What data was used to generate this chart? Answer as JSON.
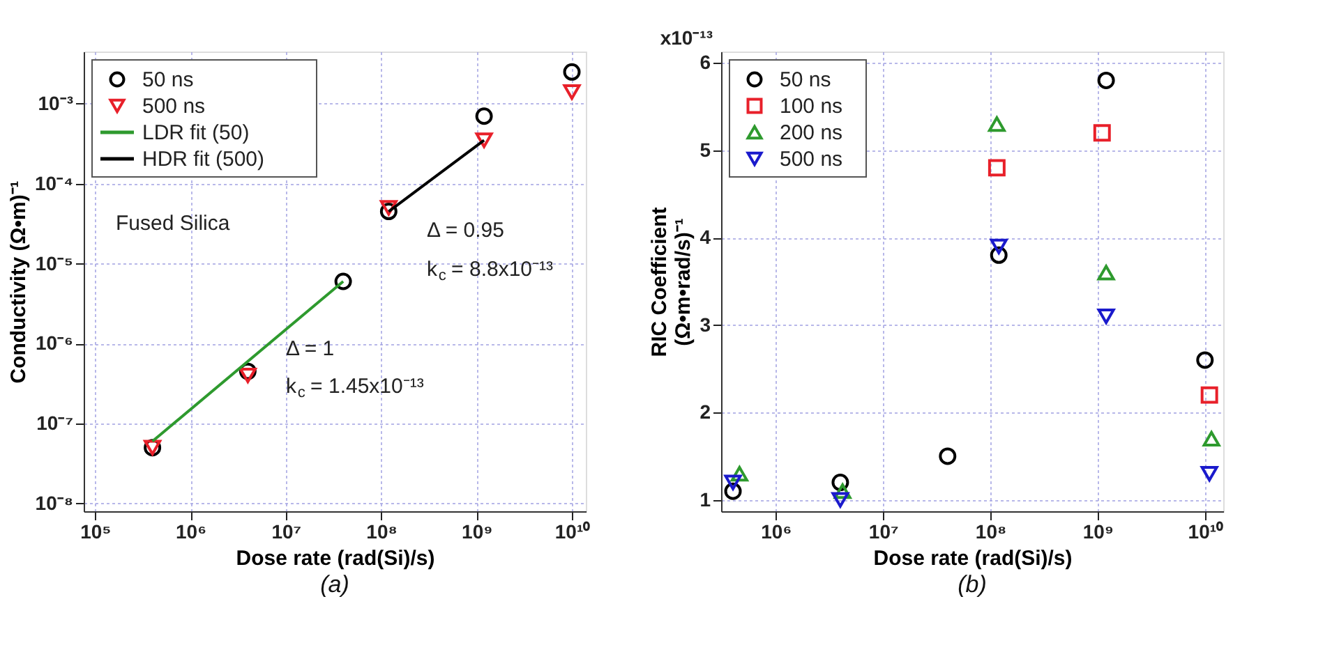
{
  "chart_data": [
    {
      "type": "scatter",
      "title": "(a)",
      "xlabel": "Dose rate (rad(Si)/s)",
      "ylabel": "Conductivity (Ω•m)⁻¹",
      "log": "xy",
      "grid": true,
      "legend": "top left",
      "xlim": [
        76000,
        14000000000
      ],
      "ylim": [
        8e-09,
        0.0045
      ],
      "xticks": [
        {
          "value": 100000,
          "label": "10⁵"
        },
        {
          "value": 1000000,
          "label": "10⁶"
        },
        {
          "value": 10000000,
          "label": "10⁷"
        },
        {
          "value": 100000000,
          "label": "10⁸"
        },
        {
          "value": 1000000000,
          "label": "10⁹"
        },
        {
          "value": 10000000000,
          "label": "10¹⁰"
        }
      ],
      "yticks": [
        {
          "value": 1e-08,
          "label": "10⁻⁸"
        },
        {
          "value": 1e-07,
          "label": "10⁻⁷"
        },
        {
          "value": 1e-06,
          "label": "10⁻⁶"
        },
        {
          "value": 1e-05,
          "label": "10⁻⁵"
        },
        {
          "value": 0.0001,
          "label": "10⁻⁴"
        },
        {
          "value": 0.001,
          "label": "10⁻³"
        }
      ],
      "series": [
        {
          "name": "50 ns",
          "color": "#000000",
          "marker": "circle",
          "x": [
            400000,
            4000000,
            40000000,
            120000000,
            1200000000,
            10000000000
          ],
          "values": [
            5e-08,
            4.5e-07,
            6e-06,
            4.5e-05,
            0.0007,
            0.0025
          ]
        },
        {
          "name": "500 ns",
          "color": "#e8202a",
          "marker": "triangle-down",
          "x": [
            400000,
            4000000,
            120000000,
            1200000000,
            10000000000
          ],
          "values": [
            5e-08,
            4e-07,
            5e-05,
            0.00035,
            0.0014
          ]
        },
        {
          "name": "LDR fit (50)",
          "type": "line",
          "color": "#2e9a2e",
          "marker": "none",
          "x": [
            400000,
            40000000
          ],
          "values": [
            6e-08,
            6e-06
          ]
        },
        {
          "name": "HDR fit (500)",
          "type": "line",
          "color": "#000000",
          "marker": "none",
          "x": [
            120000000,
            1200000000
          ],
          "values": [
            4.5e-05,
            0.00035
          ]
        }
      ],
      "annotations": [
        "Fused Silica",
        "Δ = 0.95",
        "k$_{c}$ = 8.8x10⁻¹³",
        "Δ = 1",
        "k$_{c}$ = 1.45x10⁻¹³"
      ]
    },
    {
      "type": "scatter",
      "title": "(b)",
      "xlabel": "Dose rate (rad(Si)/s)",
      "ylabel": "RIC Coefficient\n(Ω•m•rad/s)⁻¹",
      "log": "x",
      "grid": true,
      "legend": "top left",
      "annotations": [
        "x10⁻¹³"
      ],
      "xlim": [
        310000,
        14800000000
      ],
      "ylim": [
        0.87,
        6.13
      ],
      "xticks": [
        {
          "value": 1000000,
          "label": "10⁶"
        },
        {
          "value": 10000000,
          "label": "10⁷"
        },
        {
          "value": 100000000,
          "label": "10⁸"
        },
        {
          "value": 1000000000,
          "label": "10⁹"
        },
        {
          "value": 10000000000,
          "label": "10¹⁰"
        }
      ],
      "yticks": [
        1,
        2,
        3,
        4,
        5,
        6
      ],
      "series": [
        {
          "name": "50 ns",
          "color": "#000000",
          "marker": "circle",
          "x": [
            400000,
            4000000,
            40000000,
            120000000,
            1200000000,
            10000000000
          ],
          "values": [
            1.1,
            1.2,
            1.5,
            3.8,
            5.8,
            2.6
          ]
        },
        {
          "name": "100 ns",
          "color": "#e8202a",
          "marker": "square",
          "x": [
            115000000,
            1100000000,
            11000000000
          ],
          "values": [
            4.8,
            5.2,
            2.2
          ]
        },
        {
          "name": "200 ns",
          "color": "#2e9a2e",
          "marker": "triangle",
          "x": [
            460000,
            4200000,
            115000000,
            1200000000,
            11500000000
          ],
          "values": [
            1.3,
            1.1,
            5.3,
            3.6,
            1.7
          ]
        },
        {
          "name": "500 ns",
          "color": "#1a1acc",
          "marker": "triangle-down",
          "x": [
            400000,
            4000000,
            120000000,
            1200000000,
            11000000000
          ],
          "values": [
            1.2,
            1.0,
            3.9,
            3.1,
            1.3
          ]
        }
      ]
    }
  ]
}
